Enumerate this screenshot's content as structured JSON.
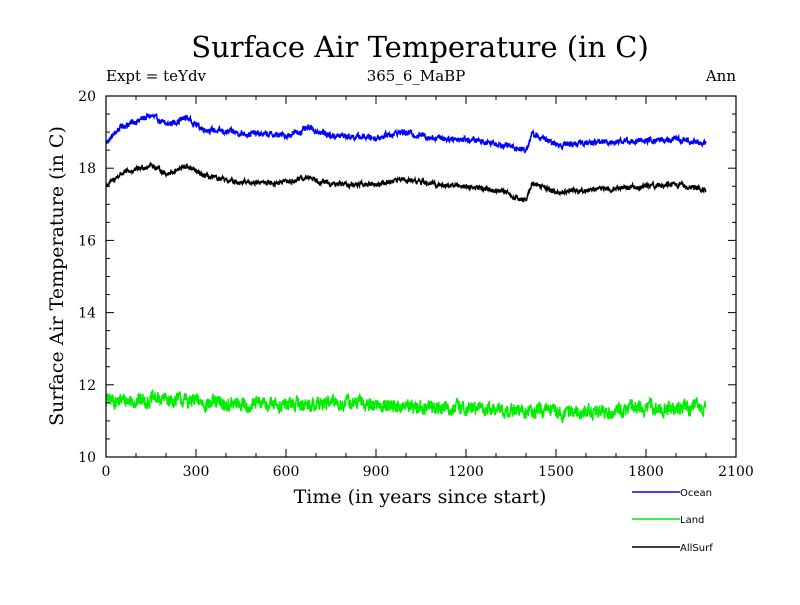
{
  "chart_data": {
    "type": "line",
    "title": "Surface Air Temperature (in C)",
    "subtitle": "365_6_MaBP",
    "expt_label": "Expt = teYdv",
    "period_label": "Ann",
    "xlabel": "Time (in years since start)",
    "ylabel": "Surface Air Temperature (in C)",
    "xlim": [
      0,
      2100
    ],
    "ylim": [
      10,
      20
    ],
    "xticks": [
      0,
      300,
      600,
      900,
      1200,
      1500,
      1800,
      2100
    ],
    "yticks": [
      10,
      12,
      14,
      16,
      18,
      20
    ],
    "x_range_years": [
      0,
      2000
    ],
    "series": [
      {
        "name": "Ocean",
        "color": "#0000ff",
        "noise": 0.12,
        "anchors": [
          [
            0,
            18.7
          ],
          [
            50,
            19.15
          ],
          [
            100,
            19.3
          ],
          [
            150,
            19.45
          ],
          [
            200,
            19.2
          ],
          [
            270,
            19.4
          ],
          [
            320,
            19.1
          ],
          [
            400,
            19.0
          ],
          [
            500,
            18.95
          ],
          [
            600,
            18.9
          ],
          [
            680,
            19.1
          ],
          [
            750,
            18.9
          ],
          [
            900,
            18.85
          ],
          [
            980,
            19.0
          ],
          [
            1100,
            18.85
          ],
          [
            1200,
            18.8
          ],
          [
            1300,
            18.7
          ],
          [
            1400,
            18.5
          ],
          [
            1420,
            18.95
          ],
          [
            1500,
            18.65
          ],
          [
            1600,
            18.7
          ],
          [
            1700,
            18.75
          ],
          [
            1800,
            18.75
          ],
          [
            1900,
            18.8
          ],
          [
            2000,
            18.7
          ]
        ]
      },
      {
        "name": "Land",
        "color": "#00ee00",
        "noise": 0.28,
        "anchors": [
          [
            0,
            11.55
          ],
          [
            200,
            11.6
          ],
          [
            400,
            11.45
          ],
          [
            600,
            11.45
          ],
          [
            800,
            11.5
          ],
          [
            1000,
            11.4
          ],
          [
            1200,
            11.35
          ],
          [
            1400,
            11.25
          ],
          [
            1600,
            11.25
          ],
          [
            1800,
            11.35
          ],
          [
            2000,
            11.35
          ]
        ]
      },
      {
        "name": "AllSurf",
        "color": "#000000",
        "noise": 0.1,
        "anchors": [
          [
            0,
            17.5
          ],
          [
            50,
            17.85
          ],
          [
            100,
            17.95
          ],
          [
            150,
            18.1
          ],
          [
            200,
            17.85
          ],
          [
            270,
            18.05
          ],
          [
            320,
            17.8
          ],
          [
            400,
            17.65
          ],
          [
            500,
            17.6
          ],
          [
            600,
            17.6
          ],
          [
            680,
            17.75
          ],
          [
            750,
            17.55
          ],
          [
            900,
            17.55
          ],
          [
            980,
            17.7
          ],
          [
            1100,
            17.55
          ],
          [
            1200,
            17.5
          ],
          [
            1300,
            17.4
          ],
          [
            1400,
            17.1
          ],
          [
            1420,
            17.6
          ],
          [
            1500,
            17.35
          ],
          [
            1600,
            17.4
          ],
          [
            1700,
            17.45
          ],
          [
            1800,
            17.5
          ],
          [
            1900,
            17.55
          ],
          [
            2000,
            17.4
          ]
        ]
      }
    ]
  }
}
